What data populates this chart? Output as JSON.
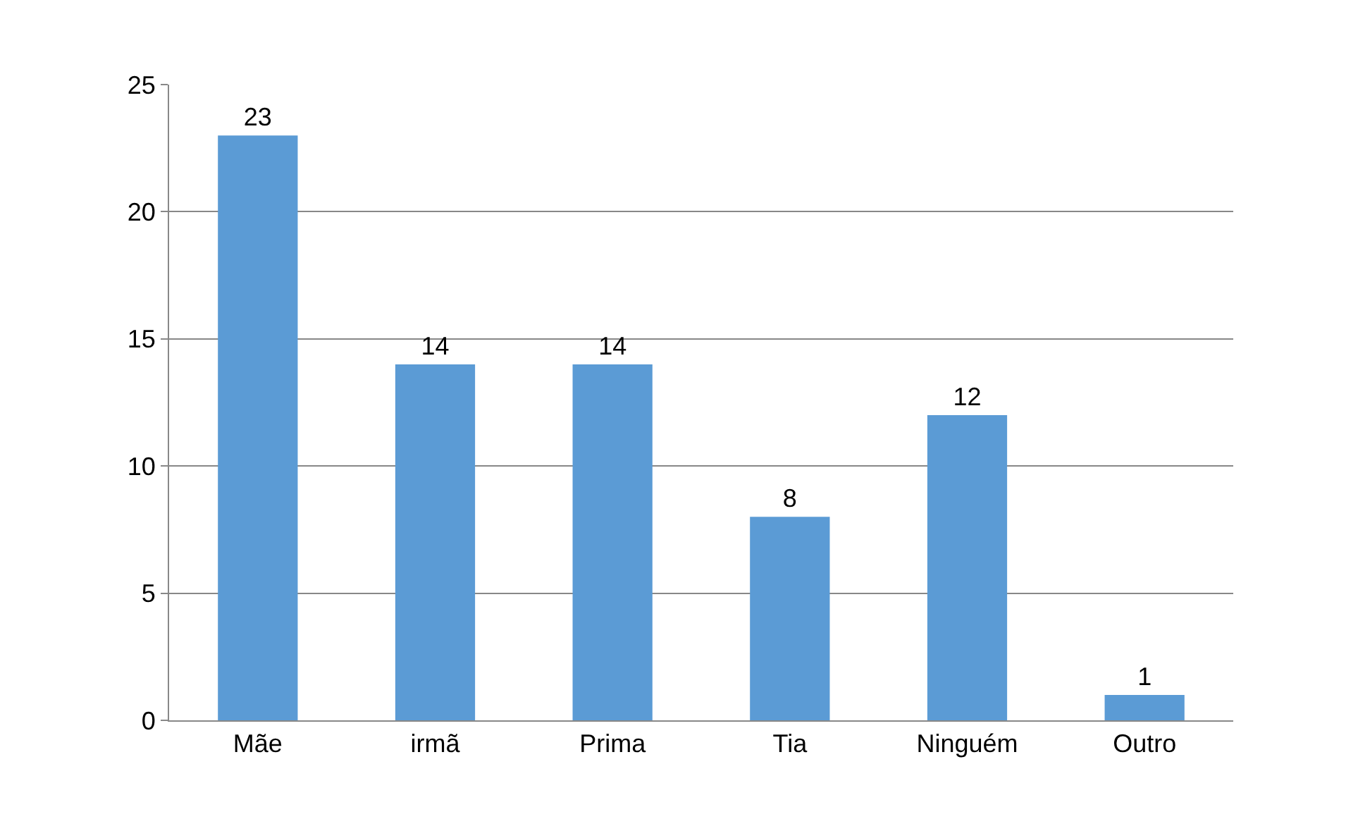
{
  "chart_data": {
    "type": "bar",
    "categories": [
      "Mãe",
      "irmã",
      "Prima",
      "Tia",
      "Ninguém",
      "Outro"
    ],
    "values": [
      23,
      14,
      14,
      8,
      12,
      1
    ],
    "color": "#5b9bd5",
    "ylim": [
      0,
      25
    ],
    "yticks": [
      0,
      5,
      10,
      15,
      20,
      25
    ],
    "grid": "y",
    "data_labels": true
  }
}
